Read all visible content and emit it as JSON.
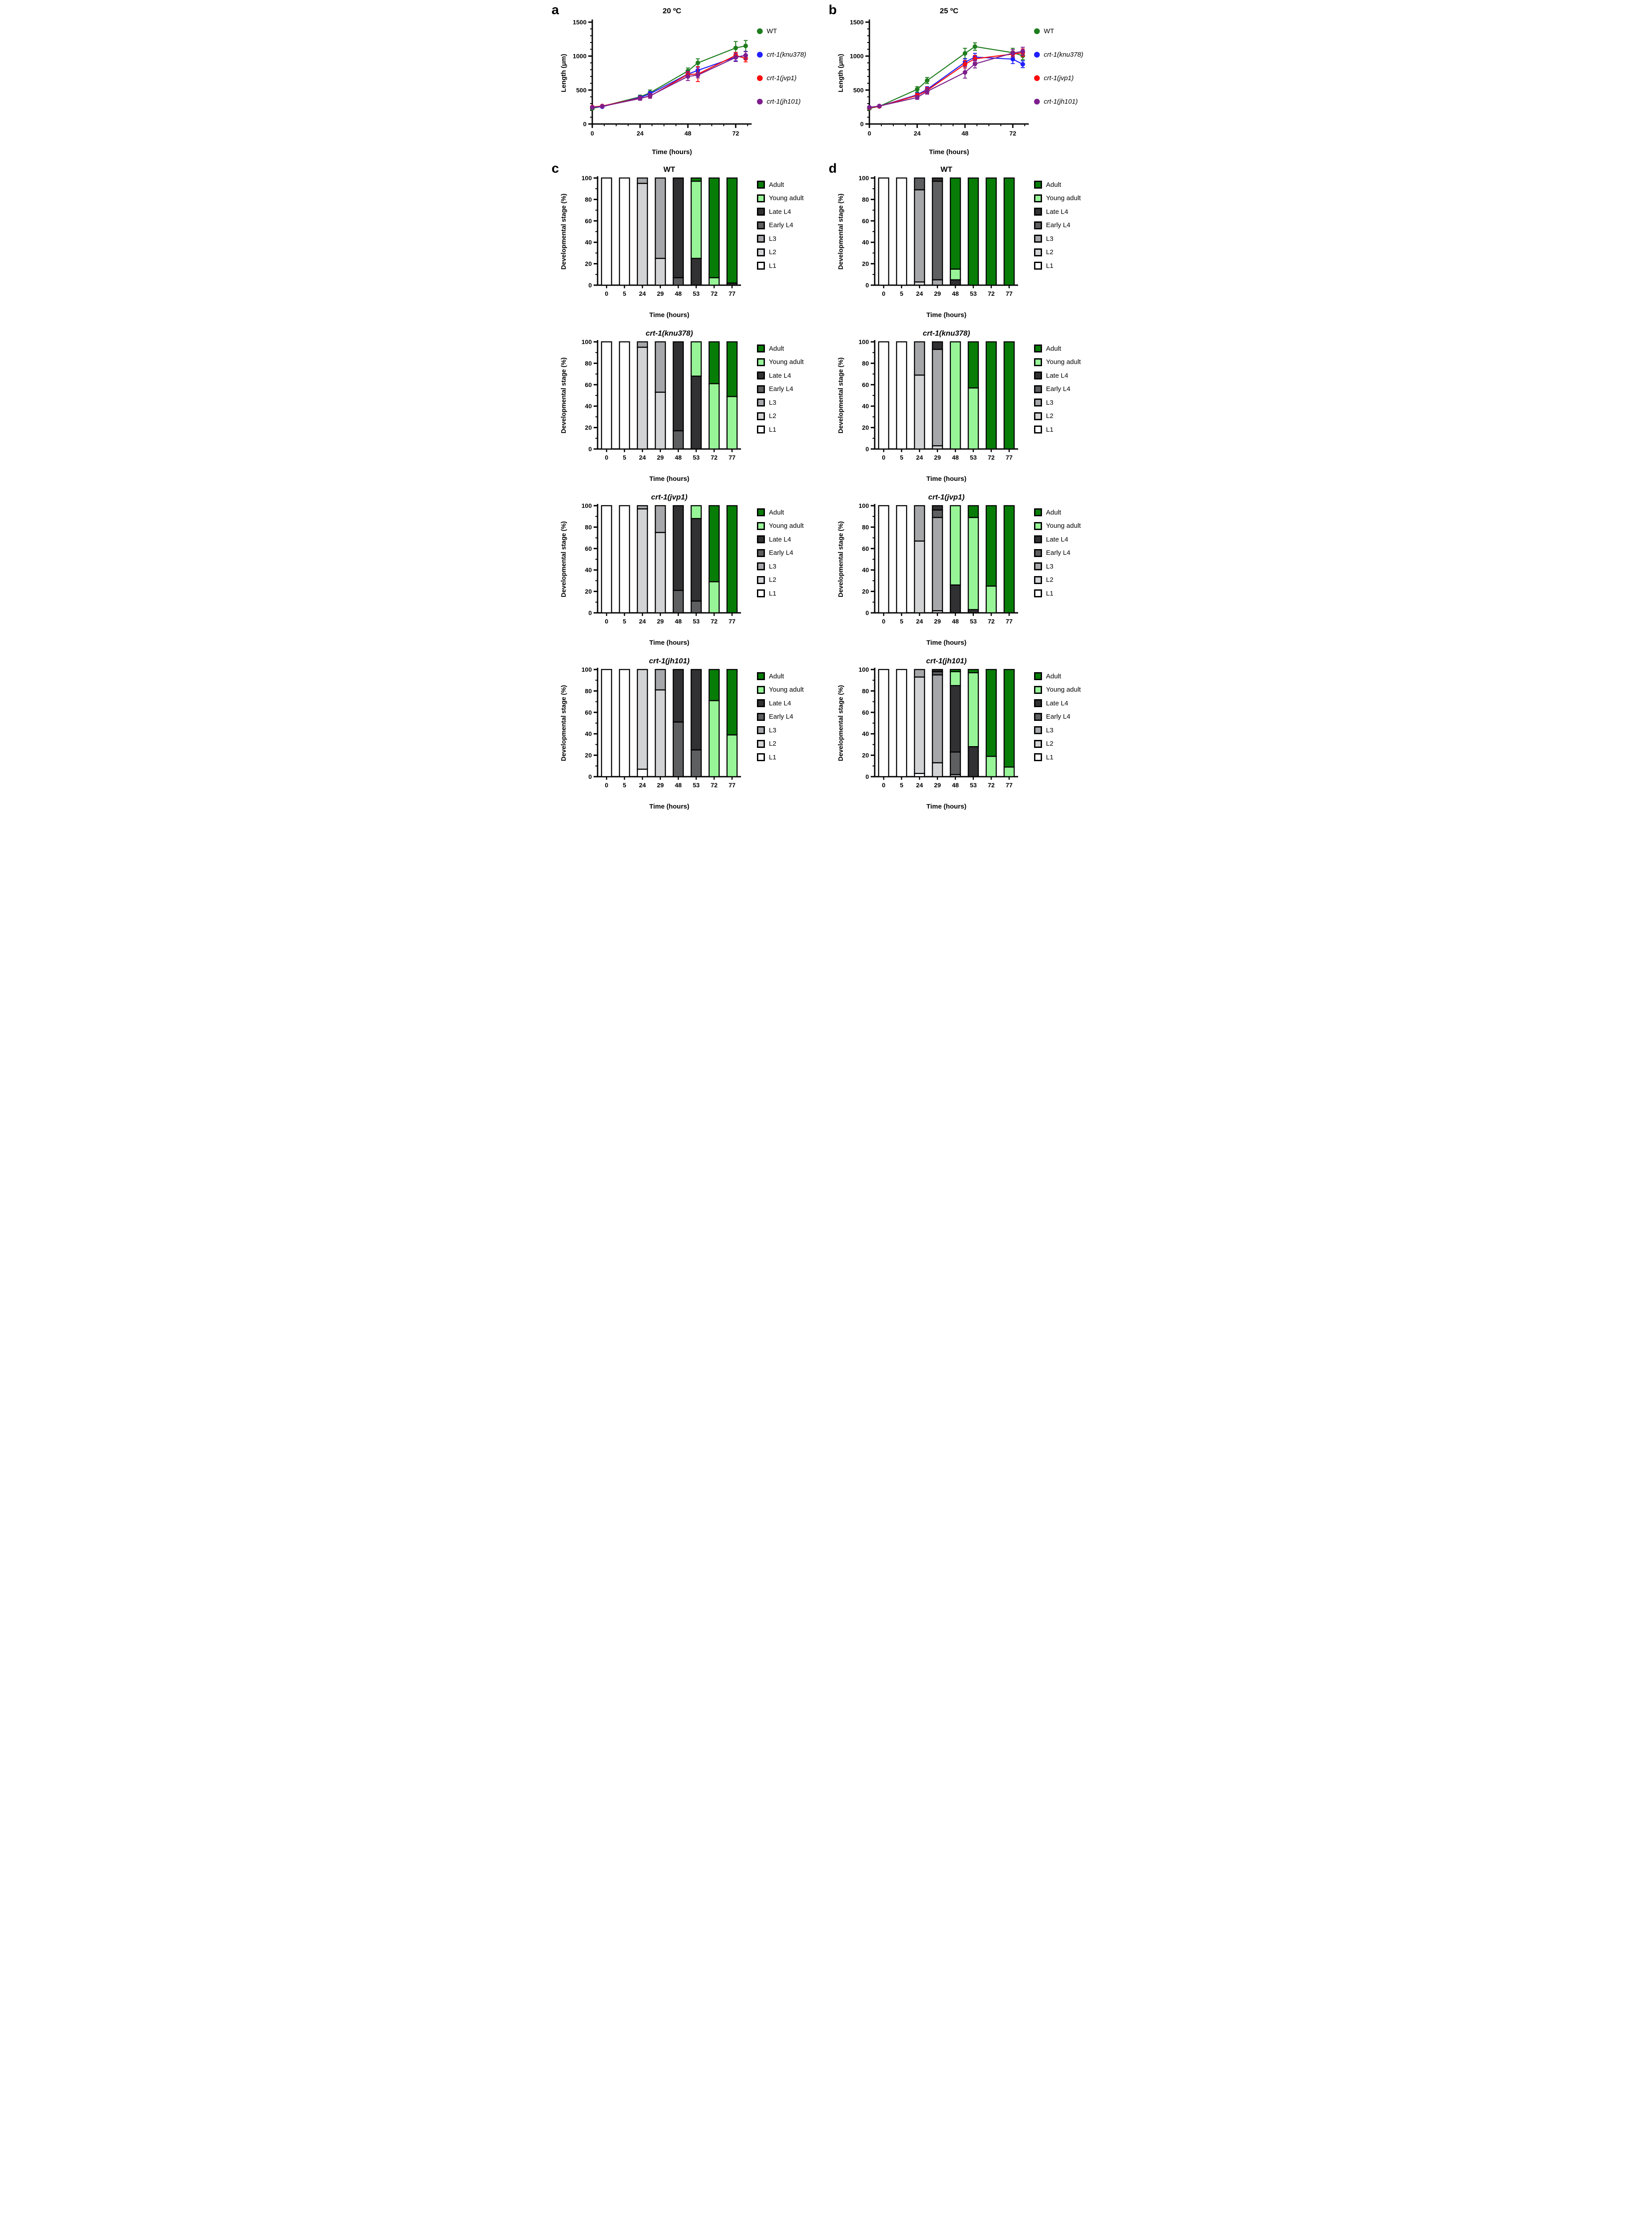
{
  "panels": {
    "a": "a",
    "b": "b",
    "c": "c",
    "d": "d"
  },
  "stage_legend": {
    "items": [
      {
        "label": "Adult",
        "color": "#077d07"
      },
      {
        "label": "Young adult",
        "color": "#97f597"
      },
      {
        "label": "Late L4",
        "color": "#313133"
      },
      {
        "label": "Early L4",
        "color": "#5e5f61"
      },
      {
        "label": "L3",
        "color": "#a5a7aa"
      },
      {
        "label": "L2",
        "color": "#d2d3d5"
      },
      {
        "label": "L1",
        "color": "#ffffff"
      }
    ]
  },
  "series_legend": {
    "items": [
      {
        "label": "WT",
        "color": "#1e7d1e",
        "italic": false
      },
      {
        "label": "crt-1(knu378)",
        "color": "#1f1fff",
        "italic": true
      },
      {
        "label": "crt-1(jvp1)",
        "color": "#fb0d0d",
        "italic": true
      },
      {
        "label": "crt-1(jh101)",
        "color": "#7d1e8c",
        "italic": true
      }
    ]
  },
  "chart_data": [
    {
      "id": "a",
      "type": "line",
      "title": "20 ºC",
      "xlabel": "Time (hours)",
      "ylabel": "Length (μm)",
      "x": [
        0,
        5,
        24,
        29,
        48,
        53,
        72,
        77
      ],
      "xlim": [
        0,
        80
      ],
      "ylim": [
        0,
        1500
      ],
      "xticks_major": [
        0,
        24,
        48,
        72
      ],
      "xtick_minor_step": 6,
      "yticks_major": [
        0,
        500,
        1000,
        1500
      ],
      "ytick_minor_step": 100,
      "grid": false,
      "legend_position": "right",
      "series": [
        {
          "name": "WT",
          "color": "#1e7d1e",
          "values": [
            230,
            260,
            400,
            460,
            780,
            900,
            1120,
            1150
          ],
          "errors": [
            20,
            15,
            25,
            40,
            45,
            60,
            95,
            80
          ]
        },
        {
          "name": "crt-1(knu378)",
          "color": "#1f1fff",
          "values": [
            245,
            255,
            390,
            445,
            735,
            790,
            985,
            1010
          ],
          "errors": [
            15,
            12,
            20,
            30,
            40,
            45,
            55,
            60
          ]
        },
        {
          "name": "crt-1(jvp1)",
          "color": "#fb0d0d",
          "values": [
            250,
            265,
            380,
            410,
            730,
            735,
            1010,
            965
          ],
          "errors": [
            15,
            12,
            22,
            30,
            40,
            110,
            45,
            50
          ]
        },
        {
          "name": "crt-1(jh101)",
          "color": "#7d1e8c",
          "values": [
            245,
            260,
            375,
            415,
            700,
            720,
            980,
            1010
          ],
          "errors": [
            15,
            12,
            25,
            35,
            60,
            40,
            60,
            55
          ]
        }
      ]
    },
    {
      "id": "b",
      "type": "line",
      "title": "25 ºC",
      "xlabel": "Time (hours)",
      "ylabel": "Length (μm)",
      "x": [
        0,
        5,
        24,
        29,
        48,
        53,
        72,
        77
      ],
      "xlim": [
        0,
        80
      ],
      "ylim": [
        0,
        1500
      ],
      "xticks_major": [
        0,
        24,
        48,
        72
      ],
      "xtick_minor_step": 6,
      "yticks_major": [
        0,
        500,
        1000,
        1500
      ],
      "ytick_minor_step": 100,
      "grid": false,
      "legend_position": "right",
      "series": [
        {
          "name": "WT",
          "color": "#1e7d1e",
          "values": [
            230,
            260,
            510,
            640,
            1040,
            1140,
            1050,
            1005
          ],
          "errors": [
            15,
            15,
            40,
            45,
            75,
            55,
            65,
            60
          ]
        },
        {
          "name": "crt-1(knu378)",
          "color": "#1f1fff",
          "values": [
            245,
            260,
            430,
            510,
            910,
            985,
            955,
            880
          ],
          "errors": [
            12,
            12,
            30,
            40,
            50,
            55,
            65,
            50
          ]
        },
        {
          "name": "crt-1(jvp1)",
          "color": "#fb0d0d",
          "values": [
            240,
            260,
            420,
            495,
            880,
            960,
            1030,
            1050
          ],
          "errors": [
            12,
            12,
            30,
            45,
            55,
            50,
            40,
            55
          ]
        },
        {
          "name": "crt-1(jh101)",
          "color": "#7d1e8c",
          "values": [
            245,
            265,
            390,
            480,
            760,
            885,
            1045,
            1070
          ],
          "errors": [
            12,
            12,
            28,
            40,
            85,
            60,
            50,
            60
          ]
        }
      ]
    },
    {
      "id": "c-wt",
      "type": "bar",
      "stacked": true,
      "title": "WT",
      "title_italic": false,
      "xlabel": "Time (hours)",
      "ylabel": "Developmental stage (%)",
      "categories": [
        "0",
        "5",
        "24",
        "29",
        "48",
        "53",
        "72",
        "77"
      ],
      "ylim": [
        0,
        100
      ],
      "yticks": [
        0,
        20,
        40,
        60,
        80,
        100
      ],
      "stack_order": [
        "L1",
        "L2",
        "L3",
        "Early L4",
        "Late L4",
        "Young adult",
        "Adult"
      ],
      "stacks": {
        "L1": [
          100,
          100,
          0,
          0,
          0,
          0,
          0,
          0
        ],
        "L2": [
          0,
          0,
          95,
          25,
          0,
          0,
          0,
          0
        ],
        "L3": [
          0,
          0,
          5,
          75,
          0,
          0,
          0,
          0
        ],
        "Early L4": [
          0,
          0,
          0,
          0,
          7,
          0,
          0,
          0
        ],
        "Late L4": [
          0,
          0,
          0,
          0,
          93,
          25,
          0,
          2
        ],
        "Young adult": [
          0,
          0,
          0,
          0,
          0,
          72,
          7,
          0
        ],
        "Adult": [
          0,
          0,
          0,
          0,
          0,
          3,
          93,
          98
        ]
      }
    },
    {
      "id": "d-wt",
      "type": "bar",
      "stacked": true,
      "title": "WT",
      "title_italic": false,
      "xlabel": "Time (hours)",
      "ylabel": "Developmental stage (%)",
      "categories": [
        "0",
        "5",
        "24",
        "29",
        "48",
        "53",
        "72",
        "77"
      ],
      "ylim": [
        0,
        100
      ],
      "yticks": [
        0,
        20,
        40,
        60,
        80,
        100
      ],
      "stack_order": [
        "L1",
        "L2",
        "L3",
        "Early L4",
        "Late L4",
        "Young adult",
        "Adult"
      ],
      "stacks": {
        "L1": [
          100,
          100,
          0,
          0,
          0,
          0,
          0,
          0
        ],
        "L2": [
          0,
          0,
          3,
          0,
          0,
          0,
          0,
          0
        ],
        "L3": [
          0,
          0,
          86,
          5,
          0,
          0,
          0,
          0
        ],
        "Early L4": [
          0,
          0,
          11,
          92,
          0,
          0,
          0,
          0
        ],
        "Late L4": [
          0,
          0,
          0,
          3,
          5,
          0,
          0,
          0
        ],
        "Young adult": [
          0,
          0,
          0,
          0,
          10,
          0,
          0,
          0
        ],
        "Adult": [
          0,
          0,
          0,
          0,
          85,
          100,
          100,
          100
        ]
      }
    },
    {
      "id": "c-knu378",
      "type": "bar",
      "stacked": true,
      "title": "crt-1(knu378)",
      "title_italic": true,
      "xlabel": "Time (hours)",
      "ylabel": "Developmental stage (%)",
      "categories": [
        "0",
        "5",
        "24",
        "29",
        "48",
        "53",
        "72",
        "77"
      ],
      "ylim": [
        0,
        100
      ],
      "yticks": [
        0,
        20,
        40,
        60,
        80,
        100
      ],
      "stack_order": [
        "L1",
        "L2",
        "L3",
        "Early L4",
        "Late L4",
        "Young adult",
        "Adult"
      ],
      "stacks": {
        "L1": [
          100,
          100,
          0,
          0,
          0,
          0,
          0,
          0
        ],
        "L2": [
          0,
          0,
          95,
          53,
          0,
          0,
          0,
          0
        ],
        "L3": [
          0,
          0,
          5,
          47,
          0,
          0,
          0,
          0
        ],
        "Early L4": [
          0,
          0,
          0,
          0,
          17,
          0,
          0,
          0
        ],
        "Late L4": [
          0,
          0,
          0,
          0,
          83,
          68,
          0,
          0
        ],
        "Young adult": [
          0,
          0,
          0,
          0,
          0,
          32,
          61,
          49
        ],
        "Adult": [
          0,
          0,
          0,
          0,
          0,
          0,
          39,
          51
        ]
      }
    },
    {
      "id": "d-knu378",
      "type": "bar",
      "stacked": true,
      "title": "crt-1(knu378)",
      "title_italic": true,
      "xlabel": "Time (hours)",
      "ylabel": "Developmental stage (%)",
      "categories": [
        "0",
        "5",
        "24",
        "29",
        "48",
        "53",
        "72",
        "77"
      ],
      "ylim": [
        0,
        100
      ],
      "yticks": [
        0,
        20,
        40,
        60,
        80,
        100
      ],
      "stack_order": [
        "L1",
        "L2",
        "L3",
        "Early L4",
        "Late L4",
        "Young adult",
        "Adult"
      ],
      "stacks": {
        "L1": [
          100,
          100,
          0,
          0,
          0,
          0,
          0,
          0
        ],
        "L2": [
          0,
          0,
          69,
          3,
          0,
          0,
          0,
          0
        ],
        "L3": [
          0,
          0,
          31,
          90,
          0,
          0,
          0,
          0
        ],
        "Early L4": [
          0,
          0,
          0,
          0,
          0,
          0,
          0,
          0
        ],
        "Late L4": [
          0,
          0,
          0,
          7,
          0,
          0,
          0,
          0
        ],
        "Young adult": [
          0,
          0,
          0,
          0,
          100,
          57,
          0,
          0
        ],
        "Adult": [
          0,
          0,
          0,
          0,
          0,
          43,
          100,
          100
        ]
      }
    },
    {
      "id": "c-jvp1",
      "type": "bar",
      "stacked": true,
      "title": "crt-1(jvp1)",
      "title_italic": true,
      "xlabel": "Time (hours)",
      "ylabel": "Developmental stage (%)",
      "categories": [
        "0",
        "5",
        "24",
        "29",
        "48",
        "53",
        "72",
        "77"
      ],
      "ylim": [
        0,
        100
      ],
      "yticks": [
        0,
        20,
        40,
        60,
        80,
        100
      ],
      "stack_order": [
        "L1",
        "L2",
        "L3",
        "Early L4",
        "Late L4",
        "Young adult",
        "Adult"
      ],
      "stacks": {
        "L1": [
          100,
          100,
          0,
          0,
          0,
          0,
          0,
          0
        ],
        "L2": [
          0,
          0,
          97,
          75,
          0,
          0,
          0,
          0
        ],
        "L3": [
          0,
          0,
          3,
          25,
          0,
          0,
          0,
          0
        ],
        "Early L4": [
          0,
          0,
          0,
          0,
          21,
          11,
          0,
          0
        ],
        "Late L4": [
          0,
          0,
          0,
          0,
          79,
          77,
          0,
          0
        ],
        "Young adult": [
          0,
          0,
          0,
          0,
          0,
          12,
          29,
          0
        ],
        "Adult": [
          0,
          0,
          0,
          0,
          0,
          0,
          71,
          100
        ]
      }
    },
    {
      "id": "d-jvp1",
      "type": "bar",
      "stacked": true,
      "title": "crt-1(jvp1)",
      "title_italic": true,
      "xlabel": "Time (hours)",
      "ylabel": "Developmental stage (%)",
      "categories": [
        "0",
        "5",
        "24",
        "29",
        "48",
        "53",
        "72",
        "77"
      ],
      "ylim": [
        0,
        100
      ],
      "yticks": [
        0,
        20,
        40,
        60,
        80,
        100
      ],
      "stack_order": [
        "L1",
        "L2",
        "L3",
        "Early L4",
        "Late L4",
        "Young adult",
        "Adult"
      ],
      "stacks": {
        "L1": [
          100,
          100,
          0,
          0,
          0,
          0,
          0,
          0
        ],
        "L2": [
          0,
          0,
          67,
          2,
          0,
          0,
          0,
          0
        ],
        "L3": [
          0,
          0,
          33,
          87,
          0,
          0,
          0,
          0
        ],
        "Early L4": [
          0,
          0,
          0,
          7,
          0,
          0,
          0,
          0
        ],
        "Late L4": [
          0,
          0,
          0,
          4,
          26,
          3,
          0,
          0
        ],
        "Young adult": [
          0,
          0,
          0,
          0,
          74,
          86,
          25,
          0
        ],
        "Adult": [
          0,
          0,
          0,
          0,
          0,
          11,
          75,
          100
        ]
      }
    },
    {
      "id": "c-jh101",
      "type": "bar",
      "stacked": true,
      "title": "crt-1(jh101)",
      "title_italic": true,
      "xlabel": "Time (hours)",
      "ylabel": "Developmental stage (%)",
      "categories": [
        "0",
        "5",
        "24",
        "29",
        "48",
        "53",
        "72",
        "77"
      ],
      "ylim": [
        0,
        100
      ],
      "yticks": [
        0,
        20,
        40,
        60,
        80,
        100
      ],
      "stack_order": [
        "L1",
        "L2",
        "L3",
        "Early L4",
        "Late L4",
        "Young adult",
        "Adult"
      ],
      "stacks": {
        "L1": [
          100,
          100,
          7,
          0,
          0,
          0,
          0,
          0
        ],
        "L2": [
          0,
          0,
          93,
          81,
          0,
          0,
          0,
          0
        ],
        "L3": [
          0,
          0,
          0,
          19,
          0,
          0,
          0,
          0
        ],
        "Early L4": [
          0,
          0,
          0,
          0,
          51,
          25,
          0,
          0
        ],
        "Late L4": [
          0,
          0,
          0,
          0,
          49,
          75,
          0,
          0
        ],
        "Young adult": [
          0,
          0,
          0,
          0,
          0,
          0,
          71,
          39
        ],
        "Adult": [
          0,
          0,
          0,
          0,
          0,
          0,
          29,
          61
        ]
      }
    },
    {
      "id": "d-jh101",
      "type": "bar",
      "stacked": true,
      "title": "crt-1(jh101)",
      "title_italic": true,
      "xlabel": "Time (hours)",
      "ylabel": "Developmental stage (%)",
      "categories": [
        "0",
        "5",
        "24",
        "29",
        "48",
        "53",
        "72",
        "77"
      ],
      "ylim": [
        0,
        100
      ],
      "yticks": [
        0,
        20,
        40,
        60,
        80,
        100
      ],
      "stack_order": [
        "L1",
        "L2",
        "L3",
        "Early L4",
        "Late L4",
        "Young adult",
        "Adult"
      ],
      "stacks": {
        "L1": [
          100,
          100,
          3,
          0,
          0,
          0,
          0,
          0
        ],
        "L2": [
          0,
          0,
          90,
          13,
          0,
          0,
          0,
          0
        ],
        "L3": [
          0,
          0,
          7,
          82,
          2,
          0,
          0,
          0
        ],
        "Early L4": [
          0,
          0,
          0,
          3,
          21,
          0,
          0,
          0
        ],
        "Late L4": [
          0,
          0,
          0,
          2,
          62,
          28,
          0,
          0
        ],
        "Young adult": [
          0,
          0,
          0,
          0,
          13,
          69,
          19,
          9
        ],
        "Adult": [
          0,
          0,
          0,
          0,
          2,
          3,
          81,
          91
        ]
      }
    }
  ]
}
